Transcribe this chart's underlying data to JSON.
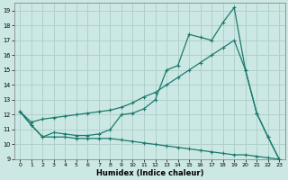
{
  "xlabel": "Humidex (Indice chaleur)",
  "xlim": [
    -0.5,
    23.5
  ],
  "ylim": [
    9,
    19.5
  ],
  "yticks": [
    9,
    10,
    11,
    12,
    13,
    14,
    15,
    16,
    17,
    18,
    19
  ],
  "xticks": [
    0,
    1,
    2,
    3,
    4,
    5,
    6,
    7,
    8,
    9,
    10,
    11,
    12,
    13,
    14,
    15,
    16,
    17,
    18,
    19,
    20,
    21,
    22,
    23
  ],
  "bg_color": "#cce8e4",
  "grid_color": "#b0d0cc",
  "line_color": "#1a7a6e",
  "line1_x": [
    0,
    1,
    2,
    3,
    4,
    5,
    6,
    7,
    8,
    9,
    10,
    11,
    12,
    13,
    14,
    15,
    16,
    17,
    18,
    19,
    20,
    21,
    22,
    23
  ],
  "line1_y": [
    12.2,
    11.3,
    10.5,
    10.8,
    10.7,
    10.6,
    10.6,
    10.7,
    11.0,
    12.0,
    12.1,
    12.4,
    13.0,
    15.0,
    15.3,
    17.4,
    17.2,
    17.0,
    18.2,
    19.2,
    15.0,
    12.1,
    10.5,
    9.0
  ],
  "line2_x": [
    0,
    1,
    2,
    3,
    4,
    5,
    6,
    7,
    8,
    9,
    10,
    11,
    12,
    13,
    14,
    15,
    16,
    17,
    18,
    19,
    20,
    21,
    22,
    23
  ],
  "line2_y": [
    12.2,
    11.5,
    11.7,
    11.8,
    11.9,
    12.0,
    12.1,
    12.2,
    12.3,
    12.5,
    12.8,
    13.2,
    13.5,
    14.0,
    14.5,
    15.0,
    15.5,
    16.0,
    16.5,
    17.0,
    15.0,
    12.1,
    10.5,
    9.0
  ],
  "line3_x": [
    0,
    1,
    2,
    3,
    4,
    5,
    6,
    7,
    8,
    9,
    10,
    11,
    12,
    13,
    14,
    15,
    16,
    17,
    18,
    19,
    20,
    21,
    22,
    23
  ],
  "line3_y": [
    12.2,
    11.3,
    10.5,
    10.5,
    10.5,
    10.4,
    10.4,
    10.4,
    10.4,
    10.3,
    10.2,
    10.1,
    10.0,
    9.9,
    9.8,
    9.7,
    9.6,
    9.5,
    9.4,
    9.3,
    9.3,
    9.2,
    9.1,
    9.0
  ]
}
